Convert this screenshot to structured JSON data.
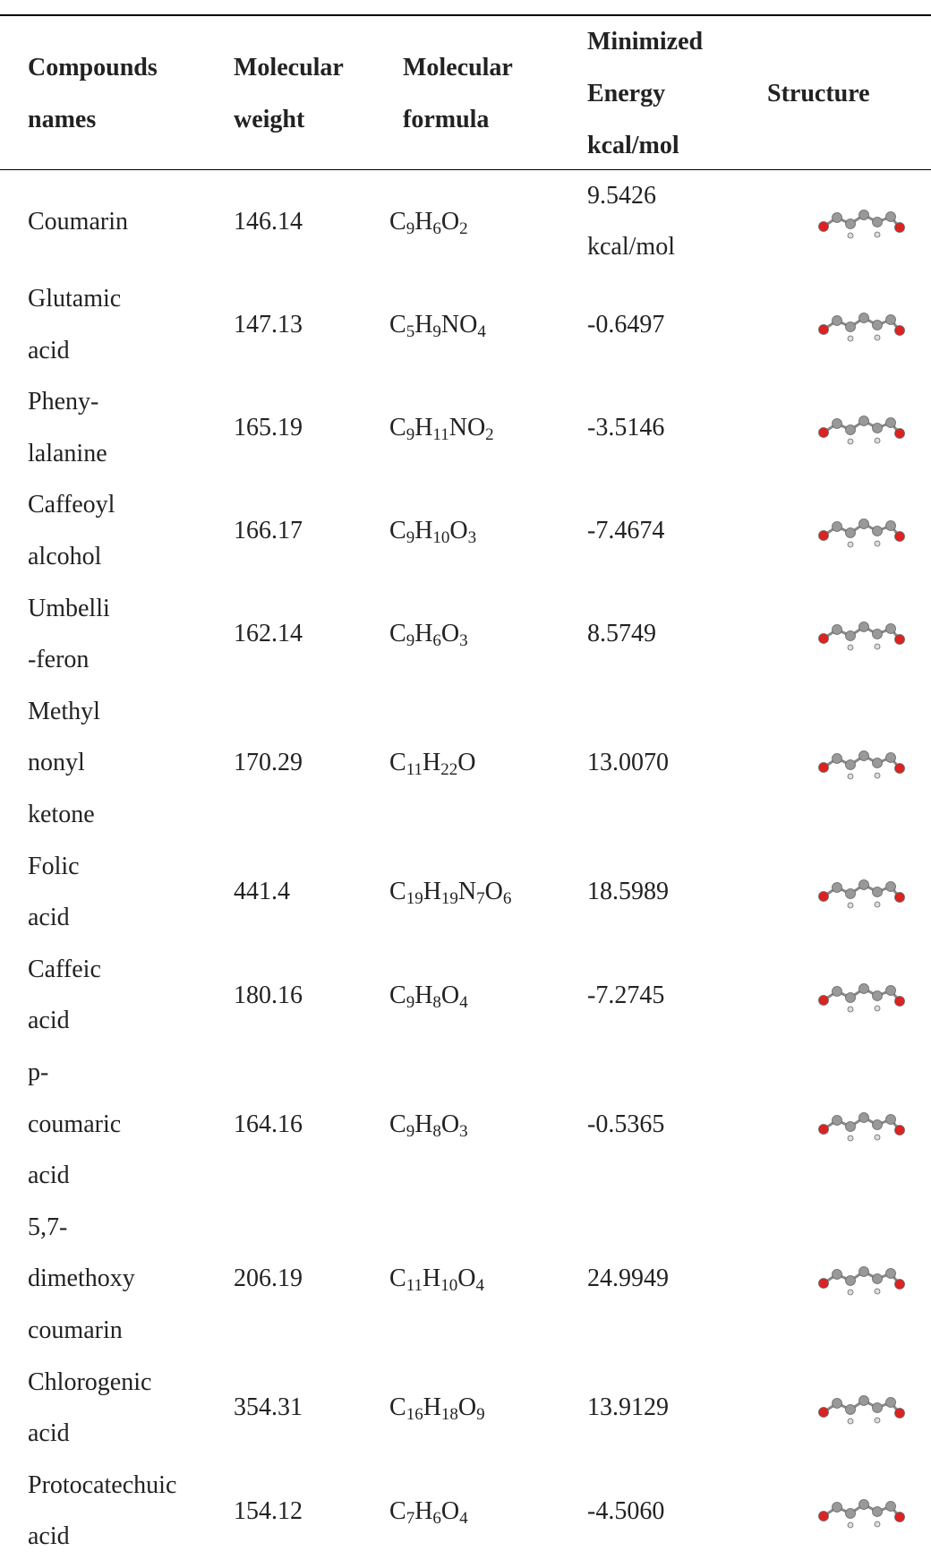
{
  "table": {
    "header": [
      [
        "Compounds",
        "names"
      ],
      [
        "Molecular",
        "weight"
      ],
      [
        "Molecular",
        "formula"
      ],
      [
        "Minimized",
        "Energy",
        "kcal/mol"
      ],
      [
        "Structure"
      ]
    ],
    "rows": [
      [
        [
          "Coumarin"
        ],
        [
          "146.14"
        ],
        [
          "C9H6O2"
        ],
        [
          "9.5426",
          "kcal/mol"
        ]
      ],
      [
        [
          "Glutamic",
          "acid"
        ],
        [
          "147.13"
        ],
        [
          "C5H9NO4"
        ],
        [
          "-0.6497"
        ]
      ],
      [
        [
          "Pheny-",
          "lalanine"
        ],
        [
          "165.19"
        ],
        [
          "C9H11NO2"
        ],
        [
          "-3.5146"
        ]
      ],
      [
        [
          "Caffeoyl",
          "alcohol"
        ],
        [
          "166.17"
        ],
        [
          "C9H10O3"
        ],
        [
          "-7.4674"
        ]
      ],
      [
        [
          "Umbelli",
          "-feron"
        ],
        [
          "162.14"
        ],
        [
          "C9H6O3"
        ],
        [
          "8.5749"
        ]
      ],
      [
        [
          "Methyl",
          "nonyl",
          "ketone"
        ],
        [
          "170.29"
        ],
        [
          "C11H22O"
        ],
        [
          "13.0070"
        ]
      ],
      [
        [
          "Folic",
          "acid"
        ],
        [
          "441.4"
        ],
        [
          "C19H19N7O6"
        ],
        [
          "18.5989"
        ]
      ],
      [
        [
          "Caffeic",
          "acid"
        ],
        [
          "180.16"
        ],
        [
          "C9H8O4"
        ],
        [
          "-7.2745"
        ]
      ],
      [
        [
          "p-",
          "coumaric",
          "acid"
        ],
        [
          "164.16"
        ],
        [
          "C9H8O3"
        ],
        [
          "-0.5365"
        ]
      ],
      [
        [
          "5,7-",
          "dimethoxy",
          "coumarin"
        ],
        [
          "206.19"
        ],
        [
          "C11H10O4"
        ],
        [
          "24.9949"
        ]
      ],
      [
        [
          "Chlorogenic",
          "acid"
        ],
        [
          "354.31"
        ],
        [
          "C16H18O9"
        ],
        [
          "13.9129"
        ]
      ],
      [
        [
          "Protocatechuic",
          "acid"
        ],
        [
          "154.12"
        ],
        [
          "C7H6O4"
        ],
        [
          "-4.5060"
        ]
      ]
    ]
  }
}
